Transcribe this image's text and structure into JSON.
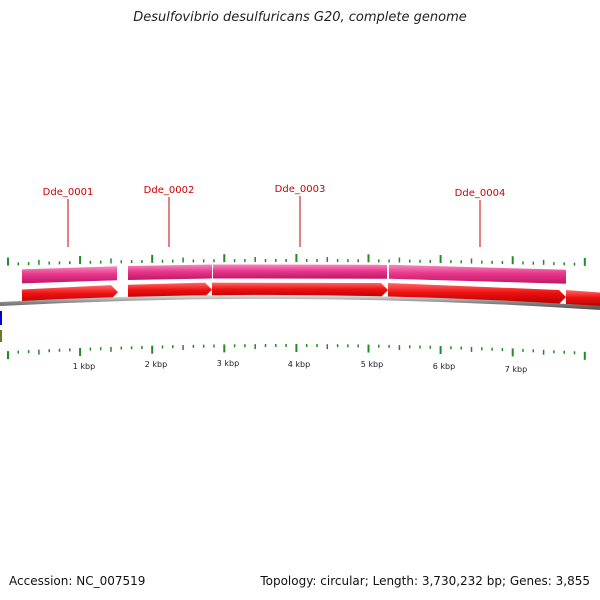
{
  "title": "Desulfovibrio desulfuricans G20, complete genome",
  "footer": {
    "accession_label": "Accession:",
    "accession": "NC_007519",
    "topology_label": "Topology:",
    "topology": "circular",
    "length_label": "Length:",
    "length": "3,730,232 bp",
    "genes_label": "Genes:",
    "genes": "3,855"
  },
  "map": {
    "scale_labels": [
      "1 kbp",
      "2 kbp",
      "3 kbp",
      "4 kbp",
      "5 kbp",
      "6 kbp",
      "7 kbp"
    ],
    "gene_labels": [
      "Dde_0001",
      "Dde_0002",
      "Dde_0003",
      "Dde_0004"
    ],
    "colors": {
      "gene_label": "#cc0000",
      "cds_track": "#e8388c",
      "gene_track": "#ee1111",
      "backbone": "#888888",
      "tick": "#228b22",
      "edge_marker_blue": "#0000cc",
      "edge_marker_olive": "#6b7a2a"
    }
  }
}
